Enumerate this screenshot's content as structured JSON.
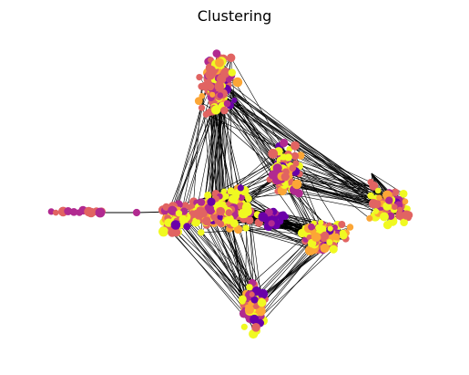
{
  "figure": {
    "title": "Clustering"
  },
  "palette": {
    "background": "#ffffff",
    "edge": "#000000",
    "node_colors": [
      "#0d0887",
      "#6a00a8",
      "#b12a90",
      "#e16462",
      "#fca636",
      "#f0f921"
    ]
  },
  "graph": {
    "node_color_map": "plasma",
    "edges_color": "#000000"
  }
}
